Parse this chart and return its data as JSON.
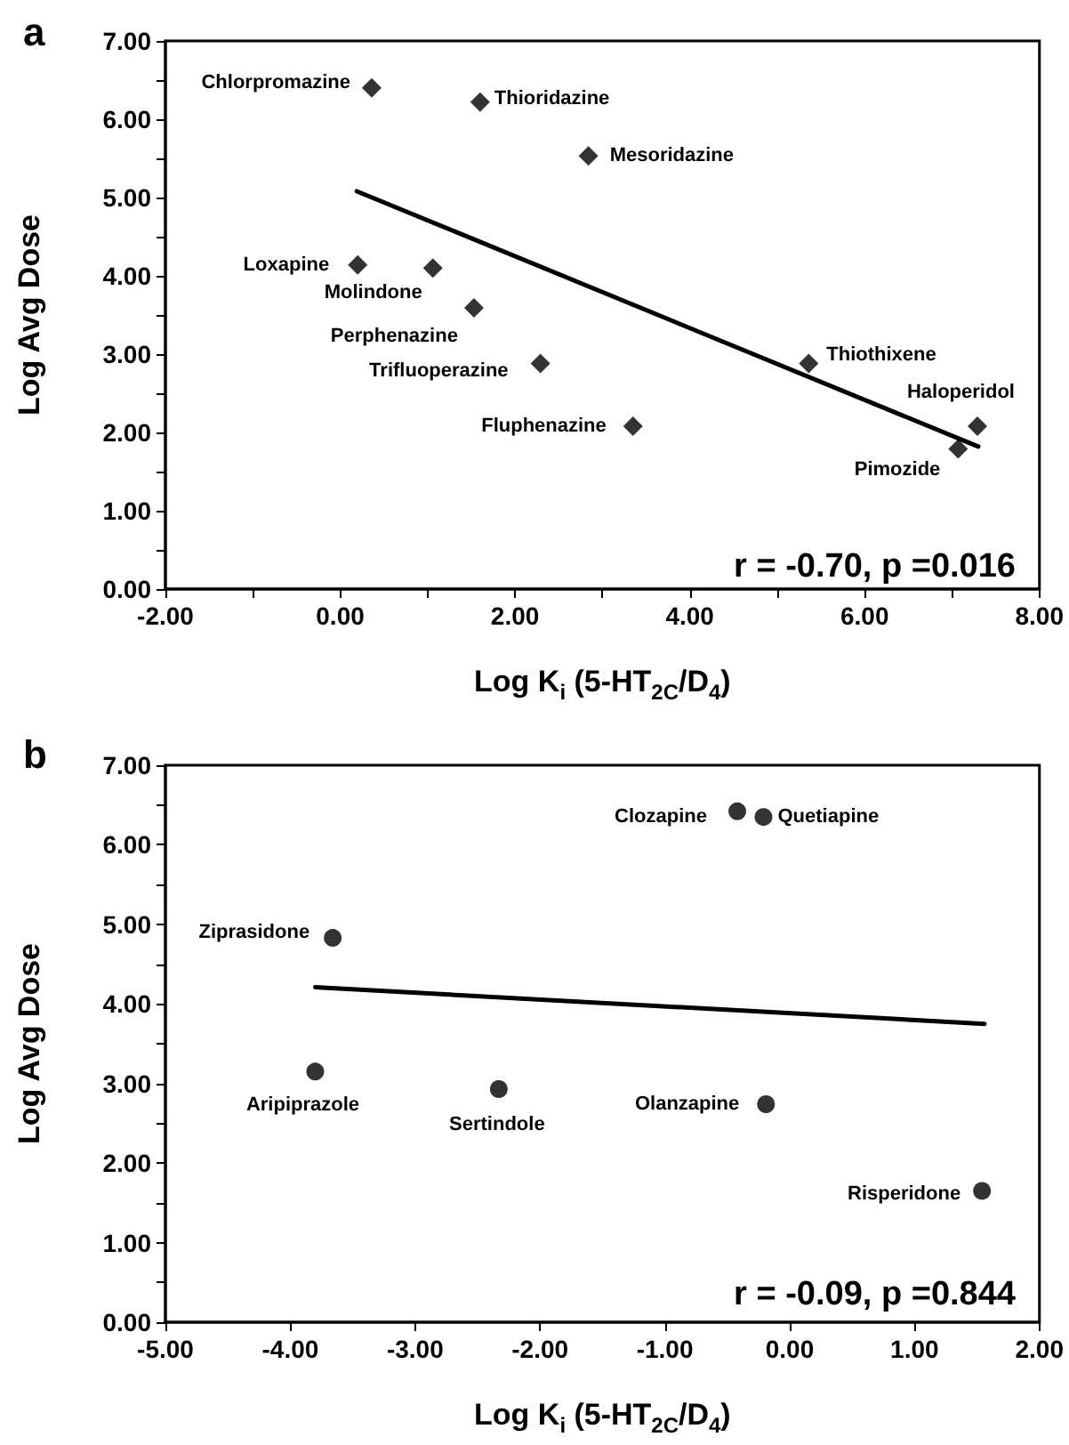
{
  "chart_data": [
    {
      "type": "scatter",
      "title": "a",
      "xlabel": "Log K$_{i}$ (5-HT$_{2C}$/D$_{4}$)",
      "ylabel": "Log Avg Dose",
      "marker": "diamond",
      "grid": false,
      "xlim": [
        -2,
        8
      ],
      "ylim": [
        0,
        7
      ],
      "xticks": [
        {
          "value": -2,
          "label": "-2.00"
        },
        {
          "value": -1,
          "label": null
        },
        {
          "value": 0,
          "label": "0.00"
        },
        {
          "value": 1,
          "label": null
        },
        {
          "value": 2,
          "label": "2.00"
        },
        {
          "value": 3,
          "label": null
        },
        {
          "value": 4,
          "label": "4.00"
        },
        {
          "value": 5,
          "label": null
        },
        {
          "value": 6,
          "label": "6.00"
        },
        {
          "value": 7,
          "label": null
        },
        {
          "value": 8,
          "label": "8.00"
        }
      ],
      "yticks": [
        {
          "value": 0,
          "label": "0.00"
        },
        {
          "value": 0.5,
          "label": null
        },
        {
          "value": 1,
          "label": "1.00"
        },
        {
          "value": 1.5,
          "label": null
        },
        {
          "value": 2,
          "label": "2.00"
        },
        {
          "value": 2.5,
          "label": null
        },
        {
          "value": 3,
          "label": "3.00"
        },
        {
          "value": 3.5,
          "label": null
        },
        {
          "value": 4,
          "label": "4.00"
        },
        {
          "value": 4.5,
          "label": null
        },
        {
          "value": 5,
          "label": "5.00"
        },
        {
          "value": 5.5,
          "label": null
        },
        {
          "value": 6,
          "label": "6.00"
        },
        {
          "value": 6.5,
          "label": null
        },
        {
          "value": 7,
          "label": "7.00"
        }
      ],
      "series": [
        {
          "type": "scatter",
          "color": "#000000",
          "x": [
            0.36,
            1.6,
            2.84,
            0.2,
            1.06,
            1.53,
            2.29,
            3.35,
            5.36,
            7.29,
            7.07
          ],
          "values": [
            6.4,
            6.22,
            5.53,
            4.14,
            4.1,
            3.59,
            2.88,
            2.08,
            2.88,
            2.08,
            1.79
          ]
        },
        {
          "type": "line",
          "color": "#000000",
          "marker": "none",
          "line_style": "solid",
          "x": [
            0.19,
            7.3
          ],
          "values": [
            5.08,
            1.82
          ]
        }
      ],
      "annotations": [
        {
          "text": "Chlorpromazine",
          "x": 0.36,
          "y": 6.4
        },
        {
          "text": "Thioridazine",
          "x": 1.6,
          "y": 6.22
        },
        {
          "text": "Mesoridazine",
          "x": 2.84,
          "y": 5.53
        },
        {
          "text": "Loxapine",
          "x": 0.2,
          "y": 4.14
        },
        {
          "text": "Molindone",
          "x": 1.06,
          "y": 4.1
        },
        {
          "text": "Perphenazine",
          "x": 1.53,
          "y": 3.59
        },
        {
          "text": "Trifluoperazine",
          "x": 2.29,
          "y": 2.88
        },
        {
          "text": "Fluphenazine",
          "x": 3.35,
          "y": 2.08
        },
        {
          "text": "Thiothixene",
          "x": 5.36,
          "y": 2.88
        },
        {
          "text": "Haloperidol",
          "x": 7.29,
          "y": 2.08
        },
        {
          "text": "Pimozide",
          "x": 7.07,
          "y": 1.79
        },
        "r = -0.70, p =0.016"
      ]
    },
    {
      "type": "scatter",
      "title": "b",
      "xlabel": "Log K$_{i}$ (5-HT$_{2C}$/D$_{4}$)",
      "ylabel": "Log Avg Dose",
      "marker": "circle",
      "grid": false,
      "xlim": [
        -5,
        2
      ],
      "ylim": [
        0,
        7
      ],
      "xticks": [
        {
          "value": -5,
          "label": "-5.00"
        },
        {
          "value": -4,
          "label": "-4.00"
        },
        {
          "value": -3,
          "label": "-3.00"
        },
        {
          "value": -2,
          "label": "-2.00"
        },
        {
          "value": -1,
          "label": "-1.00"
        },
        {
          "value": 0,
          "label": "0.00"
        },
        {
          "value": 1,
          "label": "1.00"
        },
        {
          "value": 2,
          "label": "2.00"
        }
      ],
      "yticks": [
        {
          "value": 0,
          "label": "0.00"
        },
        {
          "value": 0.5,
          "label": null
        },
        {
          "value": 1,
          "label": "1.00"
        },
        {
          "value": 1.5,
          "label": null
        },
        {
          "value": 2,
          "label": "2.00"
        },
        {
          "value": 2.5,
          "label": null
        },
        {
          "value": 3,
          "label": "3.00"
        },
        {
          "value": 3.5,
          "label": null
        },
        {
          "value": 4,
          "label": "4.00"
        },
        {
          "value": 4.5,
          "label": null
        },
        {
          "value": 5,
          "label": "5.00"
        },
        {
          "value": 5.5,
          "label": null
        },
        {
          "value": 6,
          "label": "6.00"
        },
        {
          "value": 6.5,
          "label": null
        },
        {
          "value": 7,
          "label": "7.00"
        }
      ],
      "series": [
        {
          "type": "scatter",
          "color": "#000000",
          "x": [
            -0.42,
            -0.21,
            -3.66,
            -3.8,
            -2.33,
            -0.19,
            1.54
          ],
          "values": [
            6.42,
            6.35,
            4.83,
            3.15,
            2.93,
            2.74,
            1.65
          ]
        },
        {
          "type": "line",
          "color": "#000000",
          "marker": "none",
          "line_style": "solid",
          "x": [
            -3.8,
            1.56
          ],
          "values": [
            4.21,
            3.75
          ]
        }
      ],
      "annotations": [
        {
          "text": "Clozapine",
          "x": -0.42,
          "y": 6.42
        },
        {
          "text": "Quetiapine",
          "x": -0.21,
          "y": 6.35
        },
        {
          "text": "Ziprasidone",
          "x": -3.66,
          "y": 4.83
        },
        {
          "text": "Aripiprazole",
          "x": -3.8,
          "y": 3.15
        },
        {
          "text": "Sertindole",
          "x": -2.33,
          "y": 2.93
        },
        {
          "text": "Olanzapine",
          "x": -0.19,
          "y": 2.74
        },
        {
          "text": "Risperidone",
          "x": 1.54,
          "y": 1.65
        },
        "r = -0.09, p =0.844"
      ]
    }
  ]
}
